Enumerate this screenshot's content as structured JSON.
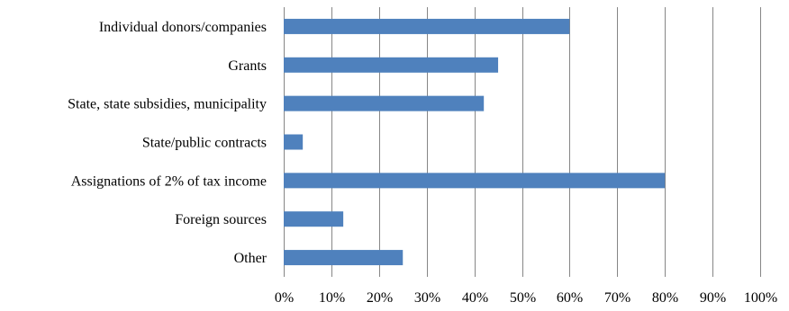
{
  "chart_data": {
    "type": "bar",
    "orientation": "horizontal",
    "title": "",
    "xlabel": "",
    "ylabel": "",
    "categories": [
      "Individual donors/companies",
      "Grants",
      "State, state subsidies, municipality",
      "State/public contracts",
      "Assignations of 2% of tax income",
      "Foreign sources",
      "Other"
    ],
    "series": [
      {
        "values": [
          60,
          45,
          42,
          4,
          80,
          12.5,
          25
        ]
      }
    ],
    "xlim": [
      0,
      100
    ],
    "x_ticks": [
      "0%",
      "10%",
      "20%",
      "30%",
      "40%",
      "50%",
      "60%",
      "70%",
      "80%",
      "90%",
      "100%"
    ],
    "value_unit": "%",
    "grid": "vertical",
    "legend": "none",
    "colors": {
      "bar": "#4f81bd",
      "grid": "#868686"
    }
  }
}
